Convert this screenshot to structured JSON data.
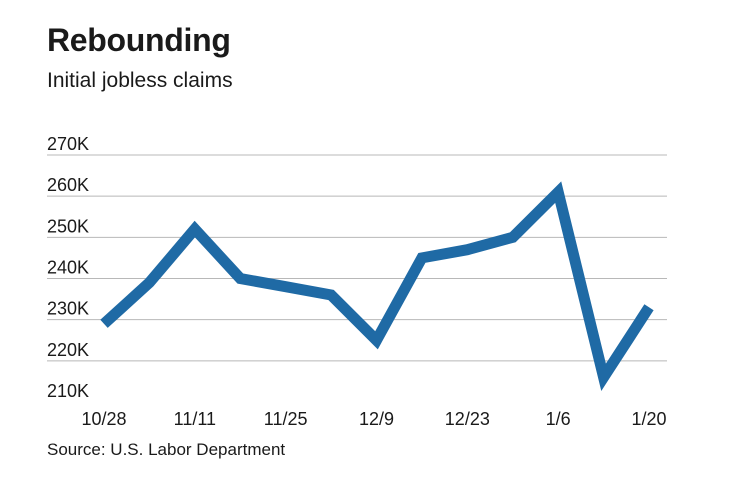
{
  "title": "Rebounding",
  "subtitle": "Initial jobless claims",
  "source": "Source: U.S. Labor Department",
  "colors": {
    "line": "#1f6aa5",
    "grid": "#b8b8b8"
  },
  "chart_data": {
    "type": "line",
    "title": "Rebounding",
    "subtitle": "Initial jobless claims",
    "ylim": [
      210,
      270
    ],
    "y_ticks": [
      {
        "value": 270,
        "label": "270K"
      },
      {
        "value": 260,
        "label": "260K"
      },
      {
        "value": 250,
        "label": "250K"
      },
      {
        "value": 240,
        "label": "240K"
      },
      {
        "value": 230,
        "label": "230K"
      },
      {
        "value": 220,
        "label": "220K"
      },
      {
        "value": 210,
        "label": "210K"
      }
    ],
    "x": [
      "10/28",
      "11/4",
      "11/11",
      "11/18",
      "11/25",
      "12/2",
      "12/9",
      "12/16",
      "12/23",
      "12/30",
      "1/6",
      "1/13",
      "1/20"
    ],
    "x_tick_labels": [
      "10/28",
      "11/11",
      "11/25",
      "12/9",
      "12/23",
      "1/6",
      "1/20"
    ],
    "series": [
      {
        "values": [
          229,
          239,
          252,
          240,
          238,
          236,
          225,
          245,
          247,
          250,
          261,
          216,
          233
        ]
      }
    ],
    "grid": true,
    "legend": "none"
  }
}
